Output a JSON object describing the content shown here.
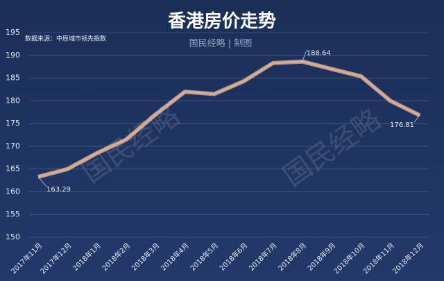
{
  "chart_data": {
    "type": "line",
    "title": "香港房价走势",
    "source": "数据来源：中原城市领先指数",
    "credit": "国民经略 | 制图",
    "watermark": "国民经略",
    "categories": [
      "2017年11月",
      "2017年12月",
      "2018年1月",
      "2018年2月",
      "2018年3月",
      "2018年4月",
      "2018年5月",
      "2018年6月",
      "2018年7月",
      "2018年8月",
      "2018年9月",
      "2018年10月",
      "2018年11月",
      "2018年12月"
    ],
    "series": [
      {
        "name": "香港房价",
        "color": "#f0a878",
        "values": [
          163.29,
          165,
          168.5,
          171.5,
          177,
          182,
          181.5,
          184.3,
          188.3,
          188.64,
          187,
          185.4,
          180,
          176.81
        ],
        "value_labels": [
          "163.29",
          null,
          null,
          null,
          null,
          null,
          null,
          null,
          null,
          "188.64",
          null,
          null,
          null,
          "176.81"
        ]
      }
    ],
    "ylim": [
      150,
      195
    ],
    "yticks": [
      150,
      155,
      160,
      165,
      170,
      175,
      180,
      185,
      190,
      195
    ],
    "grid": true
  }
}
